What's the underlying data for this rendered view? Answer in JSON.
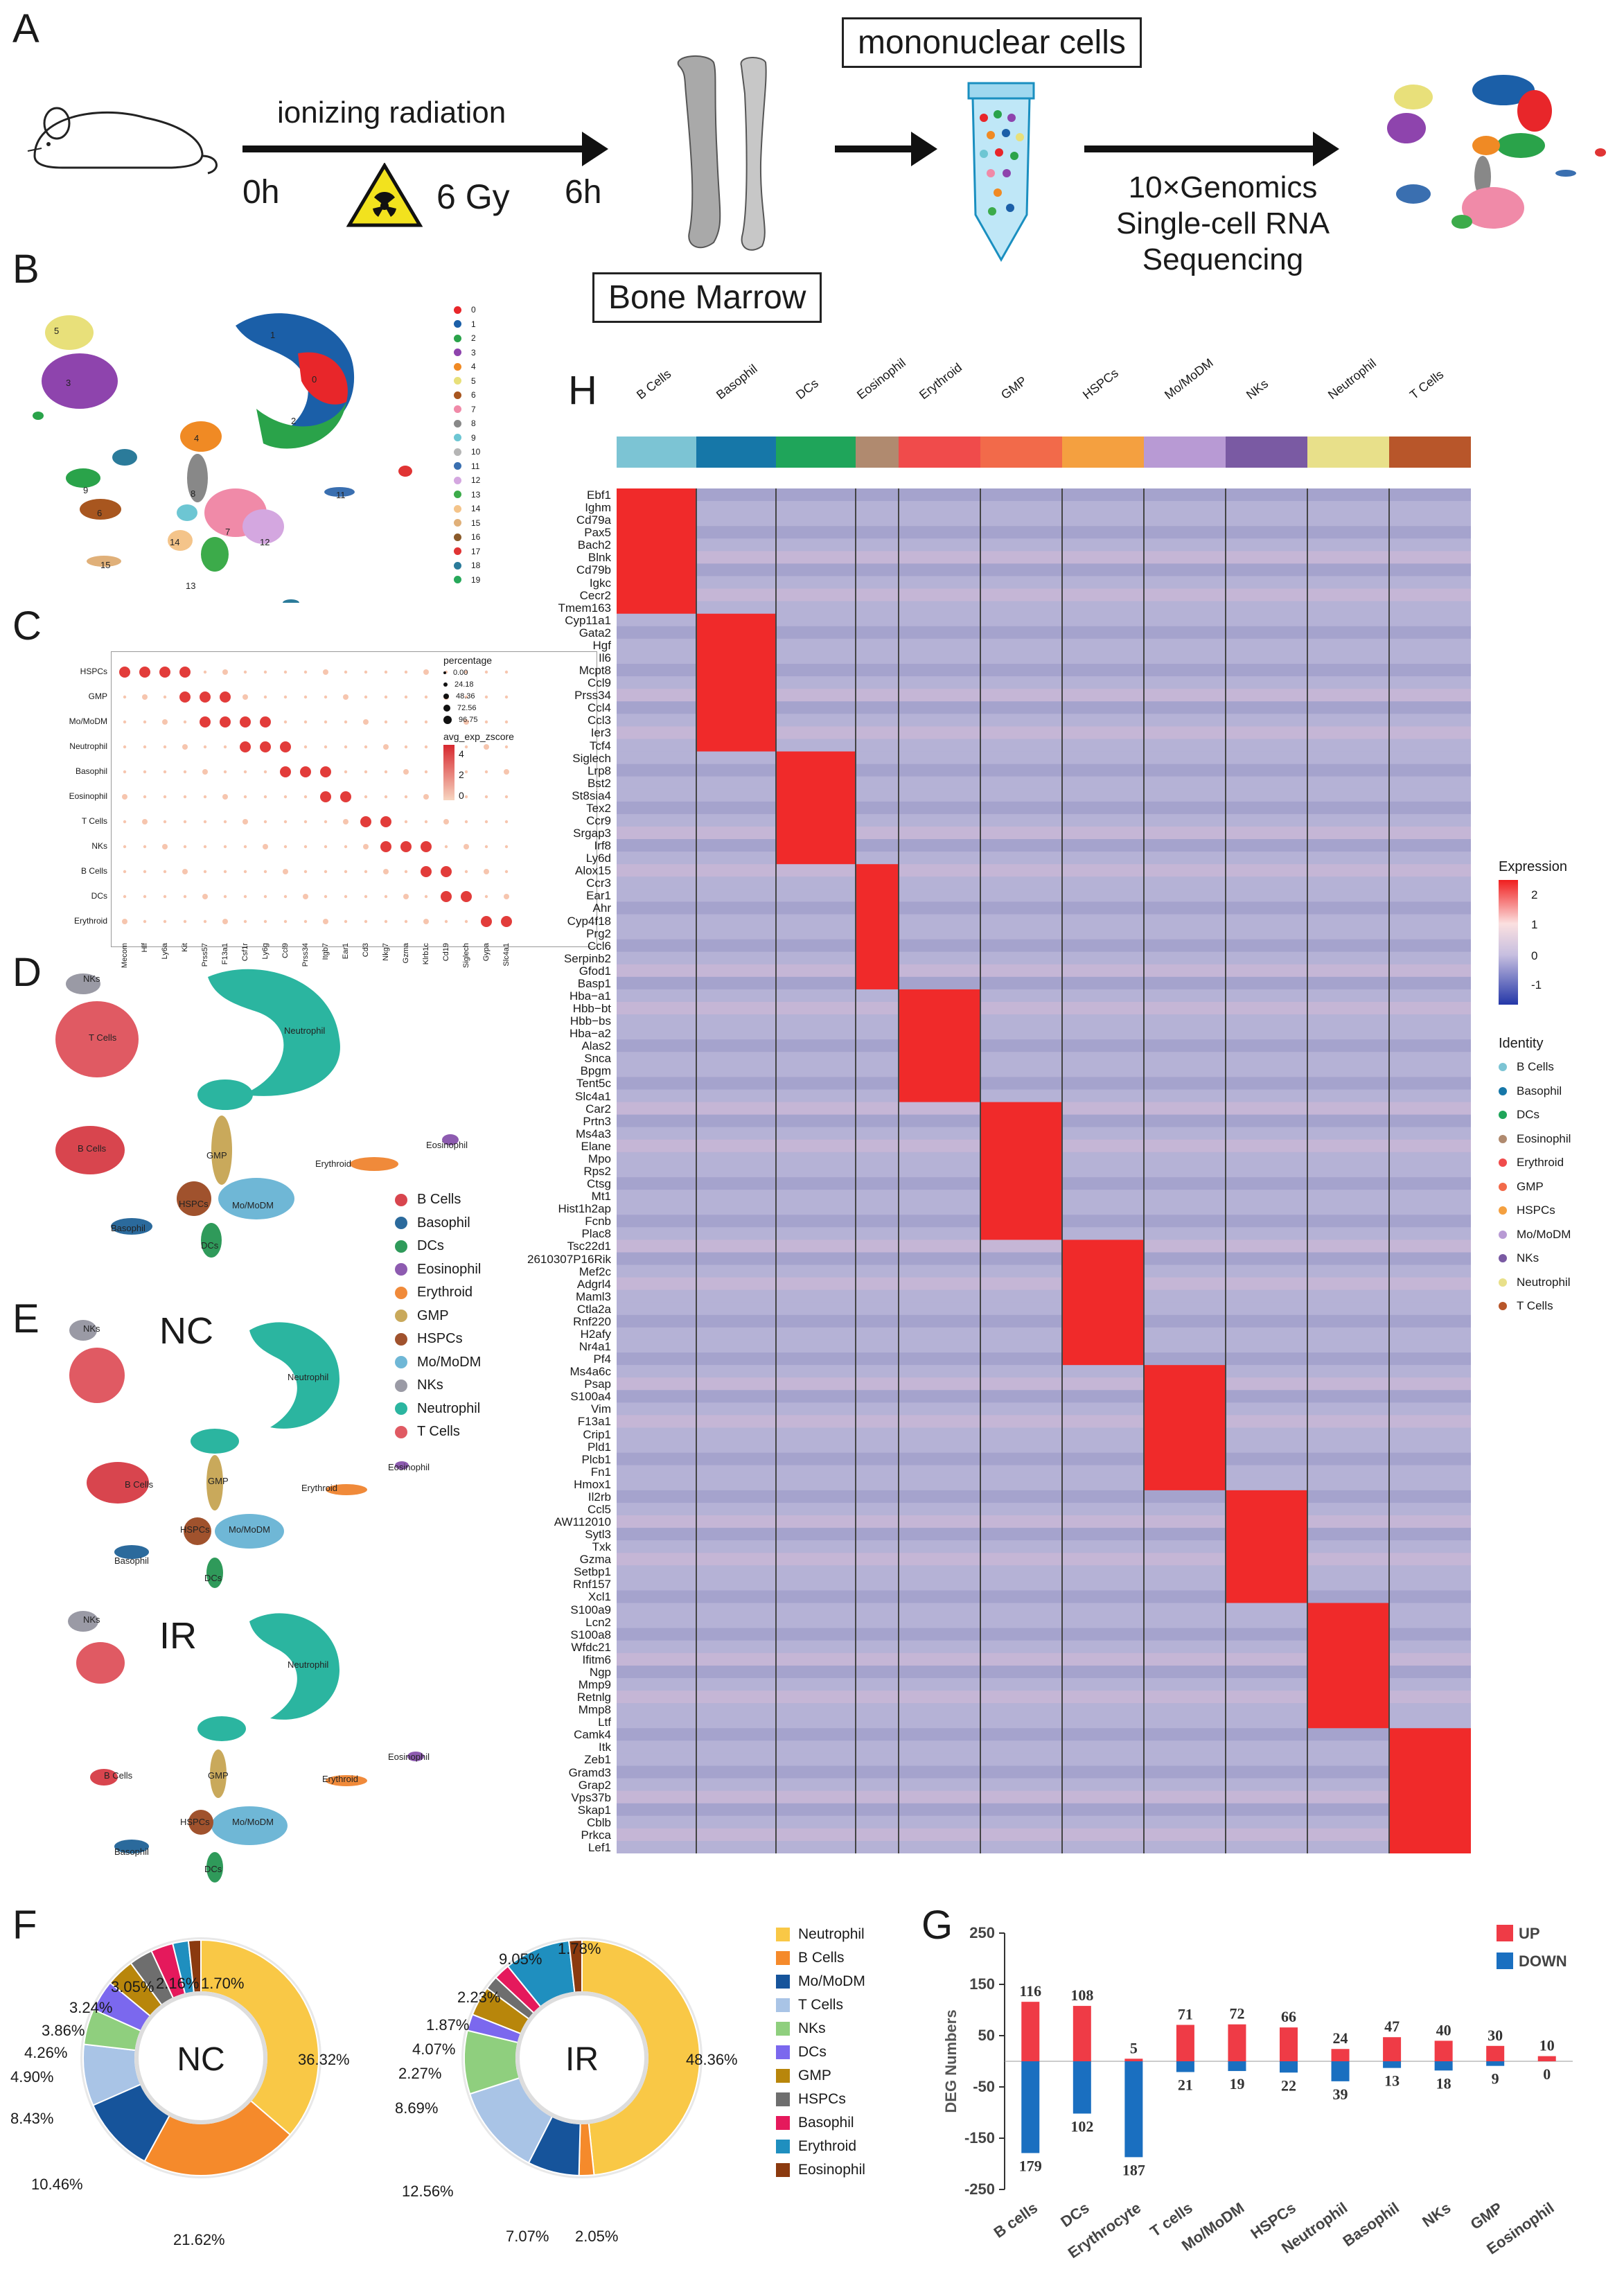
{
  "panels": [
    "A",
    "B",
    "C",
    "D",
    "E",
    "F",
    "G",
    "H"
  ],
  "panelA": {
    "ionizing": "ionizing radiation",
    "t0": "0h",
    "dose": "6 Gy",
    "t6": "6h",
    "bone": "Bone Marrow",
    "mono": "mononuclear cells",
    "seq1": "10×Genomics",
    "seq2": "Single-cell RNA",
    "seq3": "Sequencing"
  },
  "panelB": {
    "clusters": [
      "0",
      "1",
      "2",
      "3",
      "4",
      "5",
      "6",
      "7",
      "8",
      "9",
      "10",
      "11",
      "12",
      "13",
      "14",
      "15",
      "16",
      "17",
      "18",
      "19"
    ],
    "colors": [
      "#e8262a",
      "#1b5fa8",
      "#2aa34a",
      "#8e44ad",
      "#f08a24",
      "#e8e07a",
      "#a8561f",
      "#f08aa8",
      "#888888",
      "#6dc6d3",
      "#b5b5b5",
      "#3a6fb0",
      "#d4a7e0",
      "#3cab4a",
      "#f4c48a",
      "#e0b079",
      "#8a5a2a",
      "#e03434",
      "#2b7b9a",
      "#27a85a"
    ],
    "cluster_labels": [
      "5",
      "1",
      "0",
      "2",
      "4",
      "3",
      "8",
      "7",
      "12",
      "14",
      "13",
      "15",
      "11",
      "9",
      "6"
    ]
  },
  "panelC": {
    "rows": [
      "HSPCs",
      "GMP",
      "Mo/MoDM",
      "Neutrophil",
      "Basophil",
      "Eosinophil",
      "T Cells",
      "NKs",
      "B Cells",
      "DCs",
      "Erythroid"
    ],
    "cols": [
      "Mecom",
      "Hlf",
      "Ly6a",
      "Kit",
      "Prss57",
      "F13a1",
      "Csf1r",
      "Ly6g",
      "Ccl9",
      "Prss34",
      "Itgb7",
      "Ear1",
      "Cd3",
      "Nkg7",
      "Gzma",
      "Klrb1c",
      "Cd19",
      "Siglech",
      "Gypa",
      "Slc4a1"
    ],
    "legend_pct_title": "percentage",
    "legend_pct": [
      "0.00",
      "24.18",
      "48.36",
      "72.56",
      "96.75"
    ],
    "legend_z_title": "avg_exp_zscore",
    "legend_z": [
      "4",
      "2",
      "0"
    ]
  },
  "panelD": {
    "labels": [
      "NKs",
      "T Cells",
      "Neutrophil",
      "B Cells",
      "GMP",
      "Mo/MoDM",
      "HSPCs",
      "Basophil",
      "DCs",
      "Erythroid",
      "Eosinophil"
    ]
  },
  "celltype_legend": {
    "items": [
      "B Cells",
      "Basophil",
      "DCs",
      "Eosinophil",
      "Erythroid",
      "GMP",
      "HSPCs",
      "Mo/MoDM",
      "NKs",
      "Neutrophil",
      "T Cells"
    ],
    "colors": [
      "#d8454e",
      "#2b6a9c",
      "#2f9a5a",
      "#8d5bb0",
      "#f08a3a",
      "#c9a95b",
      "#a0522d",
      "#6fb7d6",
      "#9a9aa5",
      "#2bb5a0",
      "#e05a63"
    ]
  },
  "panelE": {
    "nc": "NC",
    "ir": "IR",
    "labels": [
      "Neutrophil",
      "Erythroid",
      "Eosinophil",
      "B Cells",
      "GMP",
      "HSPCs",
      "Mo/MoDM",
      "Basophil",
      "DCs",
      "NKs"
    ]
  },
  "panelF": {
    "nc_center": "NC",
    "ir_center": "IR",
    "legend": [
      "Neutrophil",
      "B Cells",
      "Mo/MoDM",
      "T Cells",
      "NKs",
      "DCs",
      "GMP",
      "HSPCs",
      "Basophil",
      "Erythroid",
      "Eosinophil"
    ],
    "colors": [
      "#f9c846",
      "#f58a2b",
      "#16549b",
      "#a9c4e6",
      "#8fcf7e",
      "#7b68ee",
      "#b8860b",
      "#6e6e6e",
      "#e5195c",
      "#1f8fbf",
      "#8b3a0f"
    ]
  },
  "chart_data": [
    {
      "type": "pie",
      "title": "NC",
      "categories": [
        "Neutrophil",
        "B Cells",
        "Mo/MoDM",
        "T Cells",
        "NKs",
        "DCs",
        "GMP",
        "HSPCs",
        "Basophil",
        "Erythroid",
        "Eosinophil"
      ],
      "values": [
        36.32,
        21.62,
        10.46,
        8.43,
        4.9,
        4.26,
        3.86,
        3.24,
        3.05,
        2.16,
        1.7
      ],
      "labels": [
        "36.32%",
        "21.62%",
        "10.46%",
        "8.43%",
        "4.90%",
        "4.26%",
        "3.86%",
        "3.24%",
        "3.05%",
        "2.16%",
        "1.70%"
      ]
    },
    {
      "type": "pie",
      "title": "IR",
      "categories": [
        "Neutrophil",
        "B Cells",
        "Mo/MoDM",
        "T Cells",
        "NKs",
        "DCs",
        "GMP",
        "HSPCs",
        "Basophil",
        "Erythroid",
        "Eosinophil"
      ],
      "values": [
        48.36,
        2.05,
        7.07,
        12.56,
        8.69,
        2.27,
        4.07,
        1.87,
        2.23,
        9.05,
        1.78
      ],
      "labels": [
        "48.36%",
        "2.05%",
        "7.07%",
        "12.56%",
        "8.69%",
        "2.27%",
        "4.07%",
        "1.87%",
        "2.23%",
        "9.05%",
        "1.78%"
      ]
    },
    {
      "type": "bar",
      "title": "DEG Numbers",
      "ylabel": "DEG Numbers",
      "categories": [
        "B cells",
        "DCs",
        "Erythrocyte",
        "T cells",
        "Mo/MoDM",
        "HSPCs",
        "Neutrophil",
        "Basophil",
        "NKs",
        "GMP",
        "Eosinophil"
      ],
      "series": [
        {
          "name": "UP",
          "values": [
            116,
            108,
            5,
            71,
            72,
            66,
            24,
            47,
            40,
            30,
            10
          ]
        },
        {
          "name": "DOWN",
          "values": [
            179,
            102,
            187,
            21,
            19,
            22,
            39,
            13,
            18,
            9,
            0
          ]
        }
      ],
      "ylim": [
        -250,
        250
      ],
      "yticks": [
        "250",
        "150",
        "50",
        "-50",
        "-150",
        "-250"
      ]
    }
  ],
  "panelH": {
    "groups": [
      "B Cells",
      "Basophil",
      "DCs",
      "Eosinophil",
      "Erythroid",
      "GMP",
      "HSPCs",
      "Mo/MoDM",
      "NKs",
      "Neutrophil",
      "T Cells"
    ],
    "group_colors": [
      "#7cc4d4",
      "#1677a8",
      "#1fa55a",
      "#b08a6f",
      "#f04b4b",
      "#f26a4a",
      "#f4a040",
      "#b89ad4",
      "#7a5aa3",
      "#e8e08a",
      "#b8562a"
    ],
    "genes": [
      "Ebf1",
      "Ighm",
      "Cd79a",
      "Pax5",
      "Bach2",
      "Blnk",
      "Cd79b",
      "Igkc",
      "Cecr2",
      "Tmem163",
      "Cyp11a1",
      "Gata2",
      "Hgf",
      "Il6",
      "Mcpt8",
      "Ccl9",
      "Prss34",
      "Ccl4",
      "Ccl3",
      "Ier3",
      "Tcf4",
      "Siglech",
      "Lrp8",
      "Bst2",
      "St8sia4",
      "Tex2",
      "Ccr9",
      "Srgap3",
      "Irf8",
      "Ly6d",
      "Alox15",
      "Ccr3",
      "Ear1",
      "Ahr",
      "Cyp4f18",
      "Prg2",
      "Ccl6",
      "Serpinb2",
      "Gfod1",
      "Basp1",
      "Hba−a1",
      "Hbb−bt",
      "Hbb−bs",
      "Hba−a2",
      "Alas2",
      "Snca",
      "Bpgm",
      "Tent5c",
      "Slc4a1",
      "Car2",
      "Prtn3",
      "Ms4a3",
      "Elane",
      "Mpo",
      "Rps2",
      "Ctsg",
      "Mt1",
      "Hist1h2ap",
      "Fcnb",
      "Plac8",
      "Tsc22d1",
      "2610307P16Rik",
      "Mef2c",
      "Adgrl4",
      "Maml3",
      "Ctla2a",
      "Rnf220",
      "H2afy",
      "Nr4a1",
      "Pf4",
      "Ms4a6c",
      "Psap",
      "S100a4",
      "Vim",
      "F13a1",
      "Crip1",
      "Pld1",
      "Plcb1",
      "Fn1",
      "Hmox1",
      "Il2rb",
      "Ccl5",
      "AW112010",
      "Sytl3",
      "Txk",
      "Gzma",
      "Setbp1",
      "Rnf157",
      "Xcl1",
      "S100a9",
      "Lcn2",
      "S100a8",
      "Wfdc21",
      "Ifitm6",
      "Ngp",
      "Mmp9",
      "Retnlg",
      "Mmp8",
      "Ltf",
      "Camk4",
      "Itk",
      "Zeb1",
      "Gramd3",
      "Grap2",
      "Vps37b",
      "Skap1",
      "Cblb",
      "Prkca",
      "Lef1"
    ],
    "block_sizes": [
      10,
      11,
      9,
      10,
      9,
      11,
      10,
      10,
      9,
      10,
      10
    ],
    "expr_title": "Expression",
    "expr_ticks": [
      "2",
      "1",
      "0",
      "-1"
    ],
    "identity_title": "Identity"
  },
  "panelG_legend": {
    "up": "UP",
    "down": "DOWN"
  }
}
